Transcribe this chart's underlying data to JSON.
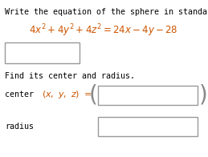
{
  "bg_color": "#ffffff",
  "title_text": "Write the equation of the sphere in standard form.",
  "title_color": "#000000",
  "title_fontsize": 7.2,
  "eq_color": "#cc5500",
  "eq_fontsize": 8.5,
  "find_text": "Find its center and radius.",
  "find_color": "#000000",
  "find_fontsize": 7.2,
  "center_label": "center",
  "radius_label": "radius",
  "label_color": "#000000",
  "label_fontsize": 7.2,
  "xyz_color": "#cc5500",
  "xyz_fontsize": 8.0,
  "eq_left_color": "#cc5500",
  "eq_right_color": "#cc5500",
  "box_edge_color": "#999999",
  "paren_color": "#888888",
  "paren_fontsize": 20
}
